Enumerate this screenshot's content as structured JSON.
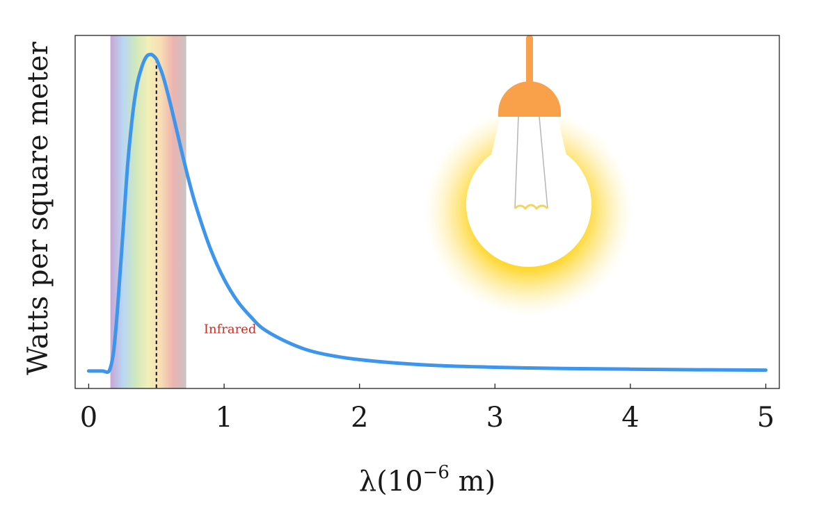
{
  "chart_data": {
    "type": "line",
    "title": "",
    "xlabel": "λ(10⁻⁶ m)",
    "xlabel_parts": {
      "prefix": "λ(10",
      "exponent": "−6",
      "suffix": " m)"
    },
    "ylabel": "Watts per square meter",
    "xlim": [
      -0.1,
      5.1
    ],
    "ylim": [
      -0.055,
      1.06
    ],
    "x_ticks": [
      0,
      1,
      2,
      3,
      4,
      5
    ],
    "y_ticks_shown": false,
    "grid": false,
    "legend": "none",
    "series": [
      {
        "color": "#3d96ec",
        "x": [
          0,
          0.1,
          0.15,
          0.18,
          0.2,
          0.22,
          0.25,
          0.28,
          0.3,
          0.33,
          0.36,
          0.4,
          0.43,
          0.46,
          0.48,
          0.5,
          0.52,
          0.55,
          0.6,
          0.65,
          0.7,
          0.75,
          0.8,
          0.9,
          1.0,
          1.1,
          1.2,
          1.3,
          1.5,
          1.7,
          2.0,
          2.5,
          3.0,
          3.5,
          4.0,
          4.5,
          5.0
        ],
        "y": [
          0,
          0,
          0.0,
          0.05,
          0.13,
          0.24,
          0.42,
          0.61,
          0.71,
          0.83,
          0.91,
          0.97,
          0.995,
          1.0,
          0.995,
          0.985,
          0.965,
          0.93,
          0.85,
          0.76,
          0.67,
          0.585,
          0.51,
          0.385,
          0.29,
          0.22,
          0.17,
          0.13,
          0.085,
          0.057,
          0.036,
          0.019,
          0.012,
          0.008,
          0.006,
          0.004,
          0.003
        ]
      }
    ],
    "peak_marker": {
      "x": 0.5,
      "style": "dashed"
    },
    "visible_band": {
      "x_range": [
        0.16,
        0.72
      ],
      "colors": [
        "#c8a5d6",
        "#b8d7f3",
        "#cfe8bd",
        "#f2f0b8",
        "#f8ddb3",
        "#ebb3b0",
        "#c8c4c4"
      ]
    },
    "annotations": [
      {
        "text": "Infrared",
        "x": 0.85,
        "y": 0.12,
        "color": "#cc2a1c"
      }
    ]
  },
  "illustration": {
    "name": "light-bulb",
    "glow_color": "#ffd832",
    "socket_color": "#f9a04a",
    "filament_color": "#f5d45c"
  }
}
